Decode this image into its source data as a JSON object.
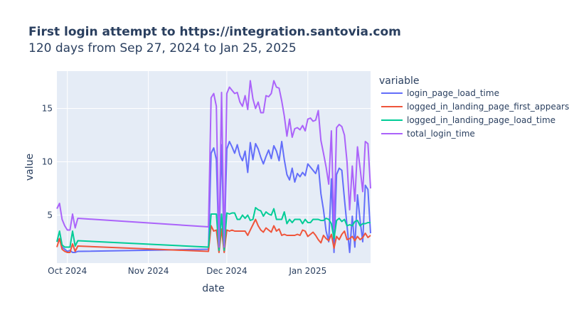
{
  "chart_data": {
    "type": "line",
    "title": "First login attempt to https://integration.santovia.com",
    "subtitle": "120 days from Sep 27, 2024 to Jan 25, 2025",
    "xlabel": "date",
    "ylabel": "value",
    "xlim": [
      "2024-09-27",
      "2025-01-25"
    ],
    "ylim": [
      0.5,
      18.5
    ],
    "x_ticks": [
      {
        "date": "2024-10-01",
        "label": "Oct 2024"
      },
      {
        "date": "2024-11-01",
        "label": "Nov 2024"
      },
      {
        "date": "2024-12-01",
        "label": "Dec 2024"
      },
      {
        "date": "2025-01-01",
        "label": "Jan 2025"
      }
    ],
    "y_ticks": [
      5,
      10,
      15
    ],
    "grid": true,
    "legend": {
      "title": "variable",
      "placement": "right"
    },
    "x": [
      "2024-09-27",
      "2024-09-28",
      "2024-09-29",
      "2024-09-30",
      "2024-10-01",
      "2024-10-02",
      "2024-10-03",
      "2024-10-04",
      "2024-10-05",
      "2024-11-24",
      "2024-11-25",
      "2024-11-26",
      "2024-11-27",
      "2024-11-28",
      "2024-11-29",
      "2024-11-30",
      "2024-12-01",
      "2024-12-02",
      "2024-12-03",
      "2024-12-04",
      "2024-12-05",
      "2024-12-06",
      "2024-12-07",
      "2024-12-08",
      "2024-12-09",
      "2024-12-10",
      "2024-12-11",
      "2024-12-12",
      "2024-12-13",
      "2024-12-14",
      "2024-12-15",
      "2024-12-16",
      "2024-12-17",
      "2024-12-18",
      "2024-12-19",
      "2024-12-20",
      "2024-12-21",
      "2024-12-22",
      "2024-12-23",
      "2024-12-24",
      "2024-12-25",
      "2024-12-26",
      "2024-12-27",
      "2024-12-28",
      "2024-12-29",
      "2024-12-30",
      "2024-12-31",
      "2025-01-01",
      "2025-01-02",
      "2025-01-03",
      "2025-01-04",
      "2025-01-05",
      "2025-01-06",
      "2025-01-07",
      "2025-01-08",
      "2025-01-09",
      "2025-01-10",
      "2025-01-11",
      "2025-01-12",
      "2025-01-13",
      "2025-01-14",
      "2025-01-15",
      "2025-01-16",
      "2025-01-17",
      "2025-01-18",
      "2025-01-19",
      "2025-01-20",
      "2025-01-21",
      "2025-01-22",
      "2025-01-23",
      "2025-01-24",
      "2025-01-25"
    ],
    "series": [
      {
        "name": "login_page_load_time",
        "color": "#636efa",
        "values": [
          2.5,
          2.8,
          2.0,
          1.8,
          1.6,
          1.7,
          1.5,
          1.5,
          1.6,
          1.8,
          10.8,
          11.3,
          10.2,
          1.8,
          11.6,
          1.6,
          11.2,
          11.9,
          11.4,
          10.8,
          11.6,
          10.6,
          10.1,
          11.0,
          9.0,
          11.8,
          10.2,
          11.7,
          11.2,
          10.4,
          9.8,
          10.5,
          11.1,
          10.3,
          11.5,
          11.0,
          10.1,
          11.9,
          10.2,
          8.8,
          8.3,
          9.4,
          8.1,
          8.9,
          8.6,
          9.0,
          8.7,
          9.8,
          9.5,
          9.2,
          8.9,
          9.7,
          7.0,
          5.5,
          3.5,
          2.5,
          8.4,
          1.5,
          8.8,
          9.4,
          9.2,
          6.5,
          4.0,
          1.5,
          4.9,
          2.0,
          6.9,
          4.5,
          2.5,
          7.8,
          7.4,
          3.3
        ]
      },
      {
        "name": "logged_in_landing_page_first_appears",
        "color": "#ef553b",
        "values": [
          2.0,
          2.8,
          1.8,
          1.6,
          1.5,
          1.5,
          2.3,
          1.6,
          2.1,
          1.6,
          4.0,
          3.5,
          3.6,
          1.5,
          3.7,
          1.5,
          3.6,
          3.5,
          3.6,
          3.5,
          3.5,
          3.5,
          3.5,
          3.5,
          3.1,
          3.6,
          4.1,
          4.6,
          4.0,
          3.6,
          3.4,
          3.8,
          3.6,
          3.4,
          4.0,
          3.5,
          3.7,
          3.1,
          3.2,
          3.1,
          3.1,
          3.1,
          3.1,
          3.2,
          3.1,
          3.6,
          3.5,
          3.0,
          3.2,
          3.4,
          3.1,
          2.7,
          2.4,
          3.1,
          2.8,
          2.6,
          3.2,
          1.9,
          3.0,
          2.7,
          3.2,
          3.5,
          2.7,
          2.8,
          3.0,
          2.6,
          3.0,
          2.7,
          2.9,
          3.3,
          2.9,
          3.1
        ]
      },
      {
        "name": "logged_in_landing_page_load_time",
        "color": "#00cc96",
        "values": [
          2.5,
          3.5,
          2.2,
          2.0,
          2.0,
          2.0,
          3.5,
          2.1,
          2.6,
          2.0,
          5.1,
          5.1,
          5.1,
          1.7,
          5.1,
          1.7,
          5.2,
          5.1,
          5.2,
          5.2,
          4.6,
          4.6,
          5.0,
          4.7,
          5.0,
          4.5,
          4.6,
          5.7,
          5.5,
          5.4,
          4.9,
          5.3,
          5.1,
          5.0,
          5.6,
          4.6,
          4.6,
          4.6,
          5.3,
          4.2,
          4.6,
          4.3,
          4.6,
          4.6,
          4.6,
          4.2,
          4.6,
          4.3,
          4.3,
          4.6,
          4.6,
          4.6,
          4.5,
          4.5,
          4.7,
          4.6,
          4.2,
          2.8,
          4.5,
          4.7,
          4.4,
          4.6,
          4.0,
          4.1,
          4.0,
          4.4,
          4.5,
          4.0,
          4.2,
          4.2,
          4.3,
          4.3
        ]
      },
      {
        "name": "total_login_time",
        "color": "#ab63fa",
        "values": [
          5.6,
          6.1,
          4.6,
          4.0,
          3.6,
          3.6,
          5.1,
          3.8,
          4.7,
          3.9,
          16.0,
          16.4,
          15.2,
          2.0,
          16.5,
          2.0,
          16.4,
          17.0,
          16.7,
          16.4,
          16.5,
          15.6,
          15.2,
          16.2,
          14.9,
          17.6,
          15.9,
          15.0,
          15.6,
          14.6,
          14.6,
          16.2,
          16.1,
          16.4,
          17.6,
          17.0,
          16.9,
          15.7,
          14.3,
          12.4,
          14.0,
          12.3,
          13.1,
          13.2,
          13.0,
          13.4,
          12.9,
          14.0,
          14.1,
          13.8,
          13.9,
          14.8,
          12.0,
          10.8,
          9.5,
          7.9,
          12.9,
          3.7,
          13.2,
          13.5,
          13.3,
          12.5,
          10.0,
          5.5,
          9.6,
          6.3,
          11.4,
          9.4,
          7.2,
          11.9,
          11.7,
          7.5
        ]
      }
    ]
  }
}
